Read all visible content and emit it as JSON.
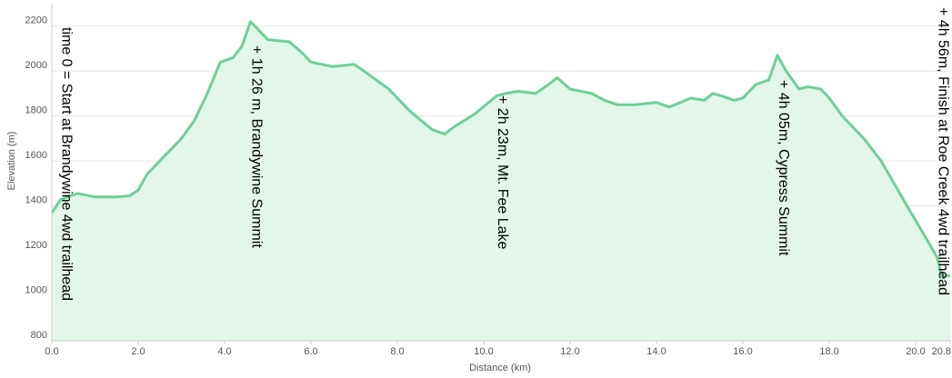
{
  "chart_data": {
    "type": "area",
    "x_label": "Distance   (km)",
    "y_label": "Elevation (m)",
    "color": "#6fcf97",
    "fill": "#e3f6ea",
    "grid": true,
    "xlim": [
      0,
      20.8
    ],
    "ylim": [
      800,
      2300
    ],
    "xticks": [
      {
        "value": 0,
        "label": "0.0"
      },
      {
        "value": 2,
        "label": "2.0"
      },
      {
        "value": 4,
        "label": "4.0"
      },
      {
        "value": 6,
        "label": "6.0"
      },
      {
        "value": 8,
        "label": "8.0"
      },
      {
        "value": 10,
        "label": "10.0"
      },
      {
        "value": 12,
        "label": "12.0"
      },
      {
        "value": 14,
        "label": "14.0"
      },
      {
        "value": 16,
        "label": "16.0"
      },
      {
        "value": 18,
        "label": "18.0"
      },
      {
        "value": 20,
        "label": "20.0"
      },
      {
        "value": 20.8,
        "label": "20.8"
      }
    ],
    "yticks": [
      800,
      1000,
      1200,
      1400,
      1600,
      1800,
      2000,
      2200
    ],
    "x": [
      0,
      0.2,
      0.5,
      0.6,
      1.0,
      1.5,
      1.8,
      2.0,
      2.2,
      2.5,
      3.0,
      3.3,
      3.6,
      3.9,
      4.2,
      4.4,
      4.6,
      4.8,
      5.0,
      5.5,
      5.8,
      6.0,
      6.5,
      7.0,
      7.3,
      7.8,
      8.3,
      8.8,
      9.1,
      9.3,
      9.8,
      10.3,
      10.5,
      10.8,
      11.2,
      11.5,
      11.7,
      12.0,
      12.5,
      12.8,
      13.1,
      13.5,
      14.0,
      14.3,
      14.8,
      15.1,
      15.3,
      15.5,
      15.8,
      16.0,
      16.3,
      16.6,
      16.8,
      17.0,
      17.3,
      17.5,
      17.8,
      18.0,
      18.3,
      18.8,
      19.2,
      19.5,
      19.8,
      20.2,
      20.5,
      20.6,
      20.8
    ],
    "values": [
      1368,
      1428,
      1450,
      1455,
      1440,
      1440,
      1445,
      1470,
      1540,
      1600,
      1700,
      1780,
      1900,
      2040,
      2060,
      2110,
      2220,
      2180,
      2140,
      2130,
      2080,
      2040,
      2020,
      2030,
      1990,
      1920,
      1820,
      1740,
      1720,
      1750,
      1810,
      1890,
      1900,
      1910,
      1900,
      1940,
      1970,
      1920,
      1900,
      1870,
      1850,
      1850,
      1860,
      1840,
      1880,
      1870,
      1900,
      1890,
      1870,
      1880,
      1940,
      1960,
      2070,
      2000,
      1920,
      1930,
      1920,
      1880,
      1800,
      1700,
      1600,
      1500,
      1400,
      1270,
      1170,
      1090,
      1090
    ],
    "annotations": [
      {
        "x": 0.2,
        "text": "time 0 = Start at Brandywine 4wd trailhead"
      },
      {
        "x": 4.6,
        "text": "+ 1h 26 m, Brandywine Summit"
      },
      {
        "x": 10.3,
        "text": "+ 2h 23m, Mt. Fee Lake"
      },
      {
        "x": 16.8,
        "text": "+ 4h 05m, Cypress Summit"
      },
      {
        "x": 20.5,
        "text": "+ 4h 56m, Finish at Roe Creek 4wd trailhead"
      }
    ]
  }
}
